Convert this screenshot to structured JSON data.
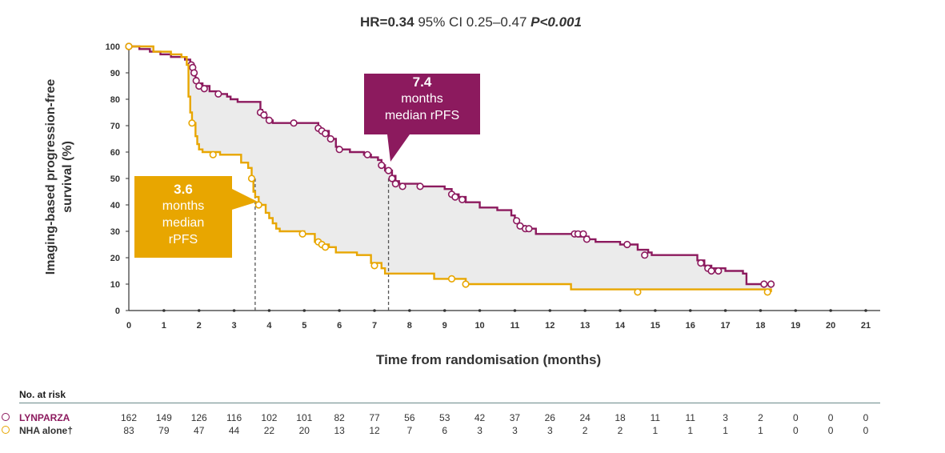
{
  "header": {
    "hr_label": "HR=0.34",
    "ci_text": "95% CI 0.25–0.47",
    "p_text": "P<0.001"
  },
  "colors": {
    "lynparza": "#8c1a5e",
    "nha": "#e8a600",
    "shade": "#ebebeb",
    "callout_lynparza": "#8c1a5e",
    "callout_nha": "#e8a600"
  },
  "callouts": {
    "lynparza": {
      "value": "7.4",
      "line1": "months",
      "line2": "median rPFS"
    },
    "nha": {
      "value": "3.6",
      "line1": "months",
      "line2": "median",
      "line3": "rPFS"
    }
  },
  "chart_data": {
    "type": "line",
    "step": true,
    "xlabel": "Time from randomisation (months)",
    "ylabel": "Imaging-based progression-free survival (%)",
    "xlim": [
      0,
      21
    ],
    "ylim": [
      0,
      100
    ],
    "xticks": [
      0,
      1,
      2,
      3,
      4,
      5,
      6,
      7,
      8,
      9,
      10,
      11,
      12,
      13,
      14,
      15,
      16,
      17,
      18,
      19,
      20,
      21
    ],
    "yticks": [
      0,
      10,
      20,
      30,
      40,
      50,
      60,
      70,
      80,
      90,
      100
    ],
    "medians": [
      {
        "series": "LYNPARZA",
        "x": 7.4,
        "y": 50
      },
      {
        "series": "NHA alone",
        "x": 3.6,
        "y": 50
      }
    ],
    "series": [
      {
        "name": "LYNPARZA",
        "color": "#8c1a5e",
        "points": [
          [
            0,
            100
          ],
          [
            0.3,
            99
          ],
          [
            0.6,
            98
          ],
          [
            0.9,
            97
          ],
          [
            1.2,
            96
          ],
          [
            1.6,
            95
          ],
          [
            1.75,
            93
          ],
          [
            1.8,
            92
          ],
          [
            1.85,
            90
          ],
          [
            1.9,
            88
          ],
          [
            1.95,
            86
          ],
          [
            2.1,
            85
          ],
          [
            2.3,
            83
          ],
          [
            2.5,
            82
          ],
          [
            2.8,
            81
          ],
          [
            2.9,
            80
          ],
          [
            3.1,
            79
          ],
          [
            3.7,
            79
          ],
          [
            3.75,
            76
          ],
          [
            3.8,
            75
          ],
          [
            3.9,
            73
          ],
          [
            4,
            72
          ],
          [
            4.1,
            71
          ],
          [
            5.2,
            71
          ],
          [
            5.4,
            69
          ],
          [
            5.5,
            68
          ],
          [
            5.7,
            65
          ],
          [
            5.9,
            62
          ],
          [
            6,
            61
          ],
          [
            6.3,
            60
          ],
          [
            6.7,
            59
          ],
          [
            6.9,
            58
          ],
          [
            7.1,
            57
          ],
          [
            7.2,
            55
          ],
          [
            7.3,
            53
          ],
          [
            7.5,
            51
          ],
          [
            7.6,
            49
          ],
          [
            7.7,
            48
          ],
          [
            8.3,
            47
          ],
          [
            9.0,
            46
          ],
          [
            9.2,
            44
          ],
          [
            9.4,
            43
          ],
          [
            9.6,
            41
          ],
          [
            10,
            39
          ],
          [
            10.5,
            38
          ],
          [
            10.9,
            36
          ],
          [
            11,
            34
          ],
          [
            11.1,
            32
          ],
          [
            11.3,
            31
          ],
          [
            11.6,
            29
          ],
          [
            12.8,
            28
          ],
          [
            13.1,
            27
          ],
          [
            13.3,
            26
          ],
          [
            14,
            25
          ],
          [
            14.5,
            23
          ],
          [
            14.8,
            22
          ],
          [
            14.9,
            21
          ],
          [
            16.2,
            19
          ],
          [
            16.4,
            17
          ],
          [
            16.6,
            16
          ],
          [
            17,
            15
          ],
          [
            17.5,
            14
          ],
          [
            17.6,
            10
          ],
          [
            18.3,
            10
          ]
        ],
        "censored": [
          [
            0,
            100
          ],
          [
            1.78,
            93
          ],
          [
            1.82,
            92
          ],
          [
            1.86,
            90
          ],
          [
            1.92,
            87
          ],
          [
            2.0,
            85
          ],
          [
            2.15,
            84
          ],
          [
            2.55,
            82
          ],
          [
            3.75,
            75
          ],
          [
            3.85,
            74
          ],
          [
            4.0,
            72
          ],
          [
            4.7,
            71
          ],
          [
            5.4,
            69
          ],
          [
            5.5,
            68
          ],
          [
            5.6,
            67
          ],
          [
            5.75,
            65
          ],
          [
            6.0,
            61
          ],
          [
            6.8,
            59
          ],
          [
            7.2,
            55
          ],
          [
            7.4,
            53
          ],
          [
            7.5,
            50
          ],
          [
            7.6,
            48
          ],
          [
            7.8,
            47
          ],
          [
            8.3,
            47
          ],
          [
            9.2,
            44
          ],
          [
            9.3,
            43
          ],
          [
            9.5,
            42
          ],
          [
            11.05,
            34
          ],
          [
            11.15,
            32
          ],
          [
            11.3,
            31
          ],
          [
            11.4,
            31
          ],
          [
            12.7,
            29
          ],
          [
            12.8,
            29
          ],
          [
            12.95,
            29
          ],
          [
            13.05,
            27
          ],
          [
            14.2,
            25
          ],
          [
            14.7,
            21
          ],
          [
            16.3,
            18
          ],
          [
            16.5,
            16
          ],
          [
            16.6,
            15
          ],
          [
            16.8,
            15
          ],
          [
            18.1,
            10
          ],
          [
            18.3,
            10
          ]
        ]
      },
      {
        "name": "NHA alone",
        "color": "#e8a600",
        "points": [
          [
            0,
            100
          ],
          [
            0.7,
            98
          ],
          [
            1.2,
            97
          ],
          [
            1.5,
            96
          ],
          [
            1.65,
            93
          ],
          [
            1.7,
            81
          ],
          [
            1.75,
            75
          ],
          [
            1.8,
            71
          ],
          [
            1.9,
            66
          ],
          [
            1.95,
            63
          ],
          [
            2.0,
            61
          ],
          [
            2.1,
            60
          ],
          [
            2.6,
            59
          ],
          [
            3.2,
            56
          ],
          [
            3.4,
            54
          ],
          [
            3.5,
            50
          ],
          [
            3.55,
            45
          ],
          [
            3.6,
            43
          ],
          [
            3.7,
            40
          ],
          [
            3.9,
            37
          ],
          [
            4.0,
            35
          ],
          [
            4.1,
            33
          ],
          [
            4.2,
            31
          ],
          [
            4.3,
            30
          ],
          [
            5.0,
            29
          ],
          [
            5.3,
            26
          ],
          [
            5.5,
            25
          ],
          [
            5.7,
            24
          ],
          [
            5.9,
            22
          ],
          [
            6.5,
            21
          ],
          [
            6.9,
            18
          ],
          [
            7.2,
            16
          ],
          [
            7.3,
            14
          ],
          [
            8.7,
            12
          ],
          [
            9.6,
            10
          ],
          [
            12.6,
            8
          ],
          [
            18.3,
            7
          ]
        ],
        "censored": [
          [
            0,
            100
          ],
          [
            1.8,
            71
          ],
          [
            2.4,
            59
          ],
          [
            3.5,
            50
          ],
          [
            3.7,
            40
          ],
          [
            4.95,
            29
          ],
          [
            5.4,
            26
          ],
          [
            5.5,
            25
          ],
          [
            5.6,
            24
          ],
          [
            7.0,
            17
          ],
          [
            9.2,
            12
          ],
          [
            9.6,
            10
          ],
          [
            14.5,
            7
          ],
          [
            18.2,
            7
          ]
        ]
      }
    ]
  },
  "risk_table": {
    "title": "No. at risk",
    "rows": [
      {
        "name": "LYNPARZA",
        "color": "#8c1a5e",
        "values": [
          "162",
          "149",
          "126",
          "116",
          "102",
          "101",
          "82",
          "77",
          "56",
          "53",
          "42",
          "37",
          "26",
          "24",
          "18",
          "11",
          "11",
          "3",
          "2",
          "0",
          "0",
          "0"
        ]
      },
      {
        "name": "NHA alone†",
        "color": "#e8a600",
        "values": [
          "83",
          "79",
          "47",
          "44",
          "22",
          "20",
          "13",
          "12",
          "7",
          "6",
          "3",
          "3",
          "3",
          "2",
          "2",
          "1",
          "1",
          "1",
          "1",
          "0",
          "0",
          "0"
        ]
      }
    ]
  }
}
